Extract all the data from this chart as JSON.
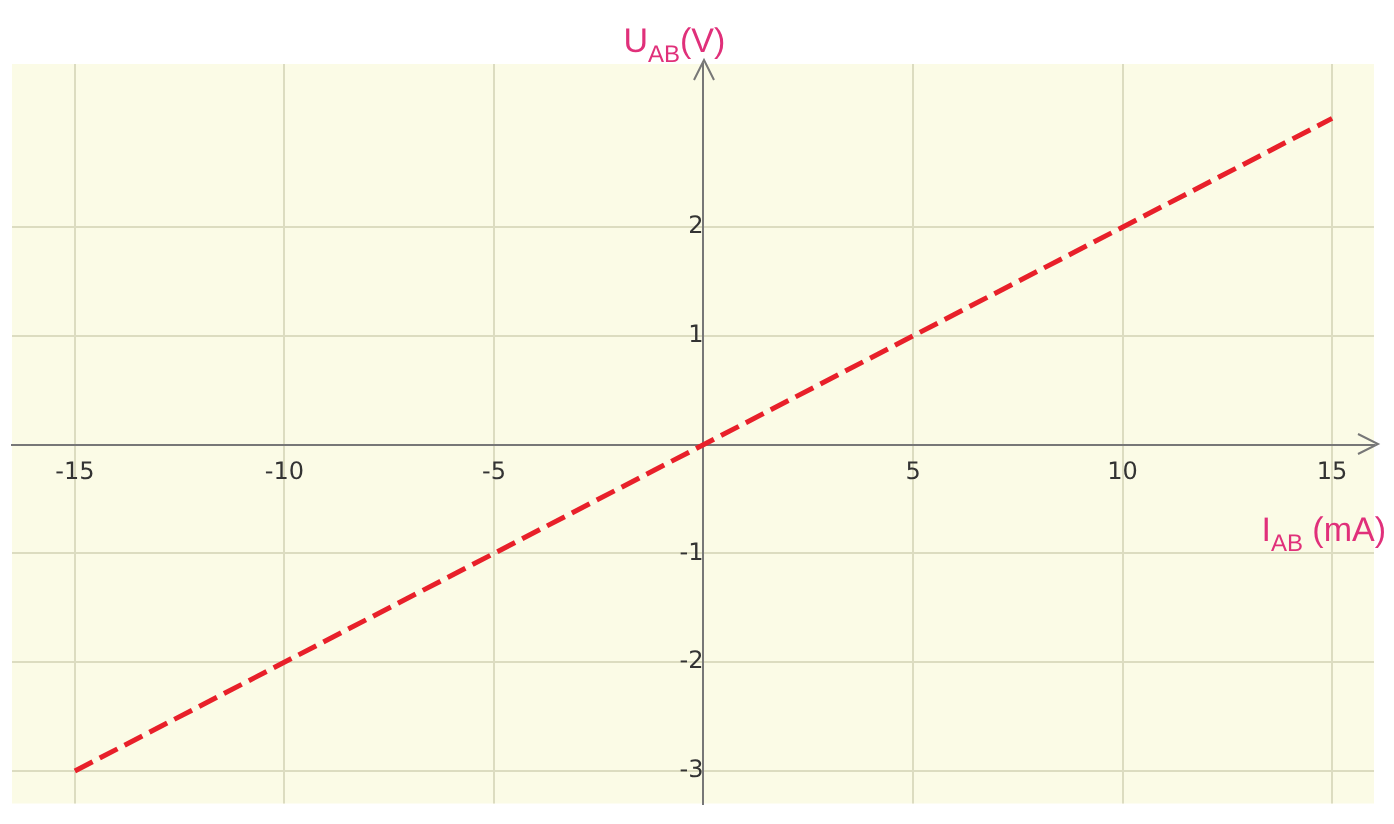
{
  "chart_data": {
    "type": "line",
    "xlabel": "I$_{AB}$ (mA)",
    "ylabel": "U$_{AB}$(V)",
    "x": [
      -15,
      15
    ],
    "series": [
      {
        "color": "#e8202a",
        "values": [
          -3,
          3
        ]
      }
    ],
    "xlim": [
      -16.5,
      16
    ],
    "ylim": [
      -3.3,
      3.5
    ],
    "xticks": [
      -15,
      -10,
      -5,
      {
        "value": 0,
        "label": null
      },
      5,
      10,
      15
    ],
    "yticks": [
      -3,
      -2,
      -1,
      {
        "value": 0,
        "label": null
      },
      1,
      2
    ],
    "grid": true,
    "legend": false,
    "marker": "none",
    "line_style": "dashed"
  }
}
